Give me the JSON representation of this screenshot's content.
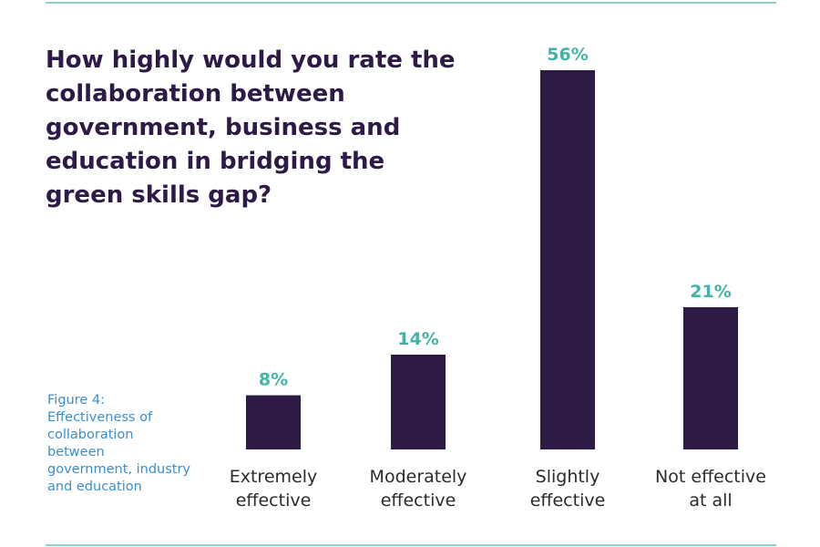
{
  "question": "How highly would you rate the collaboration between government, business and education in bridging the green skills gap?",
  "caption": "Figure 4:\nEffectiveness of\ncollaboration\nbetween\ngovernment, industry\nand education",
  "colors": {
    "bar": "#2d1a47",
    "value_label": "#45b2a8",
    "rule": "#8fd0cc",
    "caption": "#3b8fd0"
  },
  "chart_data": {
    "type": "bar",
    "categories": [
      [
        "Extremely",
        "effective"
      ],
      [
        "Moderately",
        "effective"
      ],
      [
        "Slightly",
        "effective"
      ],
      [
        "Not effective",
        "at all"
      ]
    ],
    "values": [
      8,
      14,
      56,
      21
    ],
    "value_labels": [
      "8%",
      "14%",
      "56%",
      "21%"
    ],
    "unit": "%",
    "ylim": [
      0,
      56
    ],
    "grid": false,
    "axes_visible": false
  }
}
